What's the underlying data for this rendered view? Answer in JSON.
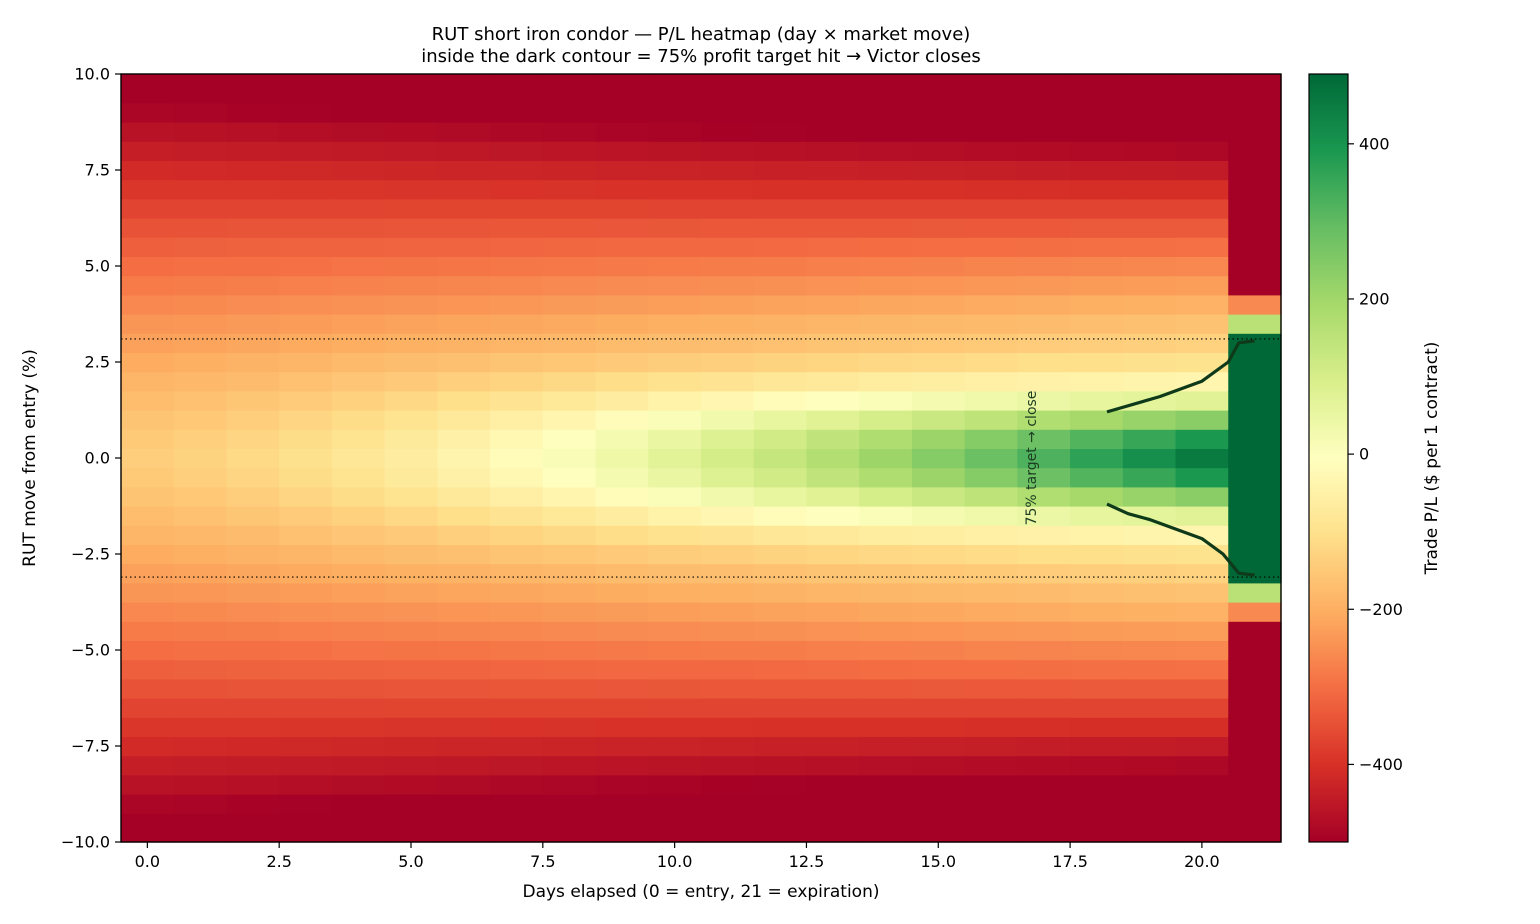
{
  "chart_data": {
    "type": "heatmap",
    "title": "RUT short iron condor — P/L heatmap (day × market move)",
    "subtitle": "inside the dark contour = 75% profit target hit → Victor closes",
    "xlabel": "Days elapsed (0 = entry, 21 = expiration)",
    "ylabel": "RUT move from entry (%)",
    "colorbar_label": "Trade P/L ($ per 1 contract)",
    "colormap": "RdYlGn",
    "colormap_stops": [
      "#a50026",
      "#d73027",
      "#f46d43",
      "#fdae61",
      "#fee08b",
      "#ffffbf",
      "#d9ef8b",
      "#a6d96a",
      "#66bd63",
      "#1a9850",
      "#006837"
    ],
    "xlim": [
      -0.5,
      21.5
    ],
    "ylim": [
      -10,
      10
    ],
    "clim": [
      -500,
      490
    ],
    "days": [
      0,
      1,
      2,
      3,
      4,
      5,
      6,
      7,
      8,
      9,
      10,
      11,
      12,
      13,
      14,
      15,
      16,
      17,
      18,
      19,
      20,
      21
    ],
    "move_range": [
      -10,
      10
    ],
    "move_rows": 41,
    "model": {
      "credit": 490,
      "max_loss": -510,
      "short_strike_pct": 3.1,
      "wing_pct": 10,
      "expiration_day": 21
    },
    "x_ticks": [
      0.0,
      2.5,
      5.0,
      7.5,
      10.0,
      12.5,
      15.0,
      17.5,
      20.0
    ],
    "x_tick_labels": [
      "0.0",
      "2.5",
      "5.0",
      "7.5",
      "10.0",
      "12.5",
      "15.0",
      "17.5",
      "20.0"
    ],
    "y_ticks": [
      10.0,
      7.5,
      5.0,
      2.5,
      0.0,
      -2.5,
      -5.0,
      -7.5,
      -10.0
    ],
    "y_tick_labels": [
      "10.0",
      "7.5",
      "5.0",
      "2.5",
      "0.0",
      "−2.5",
      "−5.0",
      "−7.5",
      "−10.0"
    ],
    "colorbar_ticks": [
      400,
      200,
      0,
      -200,
      -400
    ],
    "colorbar_tick_labels": [
      "400",
      "200",
      "0",
      "−200",
      "−400"
    ],
    "short_strike_lines": [
      3.1,
      -3.1
    ],
    "contour_upper": [
      [
        18.2,
        1.2
      ],
      [
        19.2,
        1.6
      ],
      [
        20.0,
        2.0
      ],
      [
        20.5,
        2.5
      ],
      [
        20.7,
        3.0
      ],
      [
        21.0,
        3.05
      ]
    ],
    "contour_lower": [
      [
        18.2,
        -1.2
      ],
      [
        18.6,
        -1.45
      ],
      [
        19.0,
        -1.6
      ],
      [
        19.5,
        -1.85
      ],
      [
        20.0,
        -2.1
      ],
      [
        20.4,
        -2.5
      ],
      [
        20.7,
        -3.0
      ],
      [
        21.0,
        -3.05
      ]
    ],
    "annotation": {
      "text": "75% target → close",
      "x": 16.85,
      "y": 0.0
    }
  }
}
